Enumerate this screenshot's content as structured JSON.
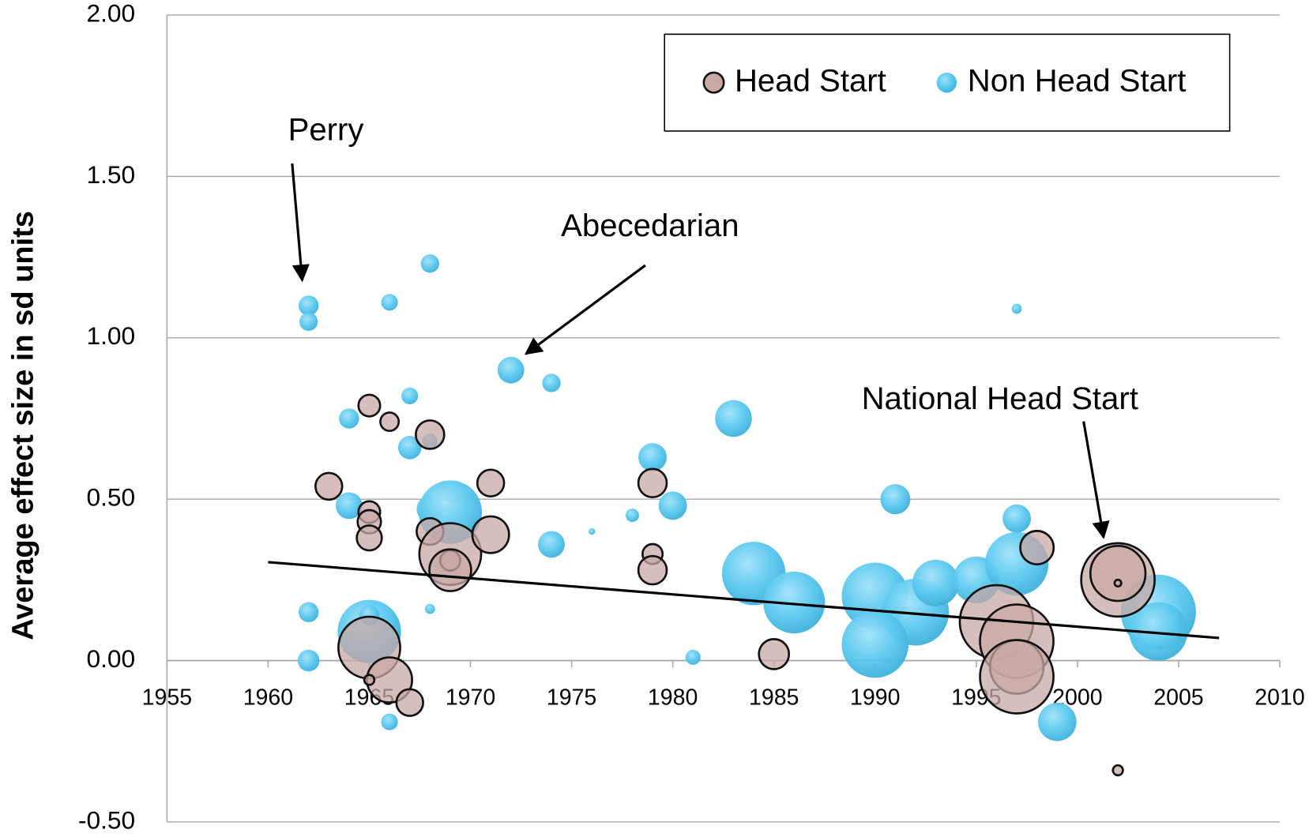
{
  "chart_data": {
    "type": "bubble",
    "y_label": "Average effect size in sd units",
    "xlim": [
      1955,
      2010
    ],
    "xticks": [
      1955,
      1960,
      1965,
      1970,
      1975,
      1980,
      1985,
      1990,
      1995,
      2000,
      2005,
      2010
    ],
    "ylim": [
      -0.5,
      2.0
    ],
    "yticks": [
      {
        "value": -0.5,
        "label": "-0.50"
      },
      {
        "value": 0,
        "label": "0.00"
      },
      {
        "value": 0.5,
        "label": "0.50"
      },
      {
        "value": 1.0,
        "label": "1.00"
      },
      {
        "value": 1.5,
        "label": "1.50"
      },
      {
        "value": 2.0,
        "label": "2.00"
      }
    ],
    "grid": true,
    "legend": "top-right",
    "series": [
      {
        "name": "Non Head Start",
        "color": "#5ac8ef",
        "x": [
          1962,
          1962,
          1966,
          1968,
          1972,
          1974,
          1964,
          1967,
          1967,
          1968,
          1968,
          1969,
          1964,
          1974,
          1976,
          1978,
          1979,
          1980,
          1983,
          1984,
          1986,
          1962,
          1962,
          1965,
          1965,
          1968,
          1966,
          1981,
          1991,
          1990,
          1992,
          1990,
          1993,
          1995,
          1997,
          1997,
          1997,
          1999,
          2004,
          2004
        ],
        "values": [
          1.1,
          1.05,
          1.11,
          1.23,
          0.9,
          0.86,
          0.75,
          0.82,
          0.66,
          0.68,
          0.47,
          0.46,
          0.48,
          0.36,
          0.4,
          0.45,
          0.63,
          0.48,
          0.75,
          0.27,
          0.18,
          0.15,
          0.0,
          0.09,
          0.14,
          0.16,
          -0.19,
          0.01,
          0.5,
          0.2,
          0.15,
          0.05,
          0.24,
          0.25,
          1.09,
          0.44,
          0.3,
          -0.19,
          0.15,
          0.09
        ],
        "sizes": [
          12,
          11,
          10,
          11,
          16,
          11,
          12,
          10,
          14,
          9,
          16,
          38,
          16,
          16,
          4,
          8,
          17,
          17,
          22,
          38,
          37,
          12,
          13,
          38,
          12,
          6,
          10,
          9,
          18,
          40,
          40,
          40,
          28,
          28,
          6,
          17,
          38,
          23,
          45,
          35
        ]
      },
      {
        "name": "Head Start",
        "color": "#c8a8a5",
        "x": [
          1963,
          1965,
          1966,
          1968,
          1971,
          1965,
          1965,
          1965,
          1968,
          1969,
          1969,
          1969,
          1971,
          1979,
          1979,
          1979,
          1965,
          1966,
          1965,
          1967,
          1985,
          1996,
          1997,
          1997,
          1997,
          1998,
          2002,
          2002,
          2002,
          2002
        ],
        "values": [
          0.54,
          0.79,
          0.74,
          0.7,
          0.55,
          0.46,
          0.43,
          0.38,
          0.4,
          0.33,
          0.31,
          0.28,
          0.39,
          0.55,
          0.33,
          0.28,
          0.04,
          -0.06,
          -0.06,
          -0.13,
          0.02,
          0.12,
          0.06,
          -0.02,
          -0.05,
          0.35,
          0.25,
          0.27,
          0.24,
          -0.34
        ],
        "sizes": [
          16,
          13,
          11,
          17,
          16,
          13,
          14,
          15,
          16,
          37,
          12,
          25,
          22,
          17,
          12,
          17,
          37,
          27,
          6,
          16,
          18,
          44,
          44,
          32,
          44,
          20,
          44,
          33,
          4,
          6
        ]
      }
    ],
    "trendline": {
      "x": [
        1960,
        2007
      ],
      "values": [
        0.305,
        0.07
      ]
    },
    "annotations": [
      "Perry",
      "Abecedarian",
      "National Head Start"
    ]
  }
}
